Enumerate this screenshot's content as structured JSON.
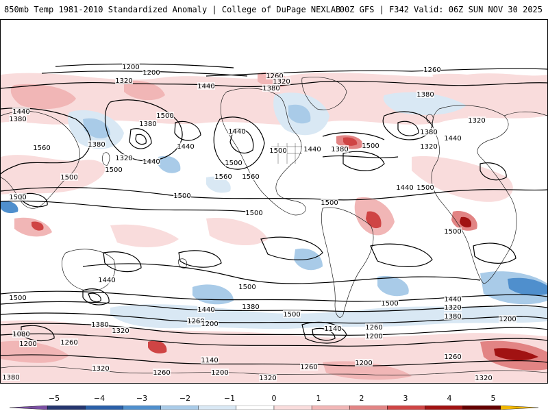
{
  "header": {
    "left": "850mb Temp 1981-2010 Standardized Anomaly | College of DuPage NEXLAB",
    "right": "00Z GFS | F342 Valid: 06Z SUN NOV 30 2025"
  },
  "colors": {
    "neg5": "#7a4fa3",
    "neg4": "#25356e",
    "neg3": "#2a5fa8",
    "neg2": "#4f8fcd",
    "neg1": "#a9cbe8",
    "neg05": "#d9e8f4",
    "zero": "#ffffff",
    "pos05": "#f9dcdc",
    "pos1": "#f1b6b6",
    "pos2": "#e28484",
    "pos3": "#cf4444",
    "pos4": "#a11212",
    "pos5": "#640000",
    "over": "#f2b700",
    "contour": "#000000",
    "coast": "#1f1f1f"
  },
  "colorbar": {
    "ticks": [
      "−5",
      "−4",
      "−3",
      "−2",
      "−1",
      "0",
      "1",
      "2",
      "3",
      "4",
      "5"
    ]
  },
  "contour_labels": [
    {
      "text": "1200"
    },
    {
      "text": "1200"
    },
    {
      "text": "1260"
    },
    {
      "text": "1260"
    },
    {
      "text": "1320"
    },
    {
      "text": "1320"
    },
    {
      "text": "1380"
    },
    {
      "text": "1440"
    },
    {
      "text": "1380"
    },
    {
      "text": "1440"
    },
    {
      "text": "1440"
    },
    {
      "text": "1380"
    },
    {
      "text": "1500"
    },
    {
      "text": "1380"
    },
    {
      "text": "1560"
    },
    {
      "text": "1560"
    },
    {
      "text": "1500"
    },
    {
      "text": "1320"
    },
    {
      "text": "1440"
    },
    {
      "text": "1500"
    },
    {
      "text": "1440"
    },
    {
      "text": "1500"
    },
    {
      "text": "1560"
    },
    {
      "text": "1500"
    },
    {
      "text": "1440"
    },
    {
      "text": "1380"
    },
    {
      "text": "1500"
    },
    {
      "text": "1380"
    },
    {
      "text": "1440"
    },
    {
      "text": "1320"
    },
    {
      "text": "1320"
    },
    {
      "text": "1380"
    },
    {
      "text": "1500"
    },
    {
      "text": "1500"
    },
    {
      "text": "1500"
    },
    {
      "text": "1500"
    },
    {
      "text": "1500"
    },
    {
      "text": "1440"
    },
    {
      "text": "1500"
    },
    {
      "text": "1500"
    },
    {
      "text": "1500"
    },
    {
      "text": "1440"
    },
    {
      "text": "1380"
    },
    {
      "text": "1500"
    },
    {
      "text": "1440"
    },
    {
      "text": "1320"
    },
    {
      "text": "1380"
    },
    {
      "text": "1260"
    },
    {
      "text": "1200"
    },
    {
      "text": "1140"
    },
    {
      "text": "1260"
    },
    {
      "text": "1200"
    },
    {
      "text": "1500"
    },
    {
      "text": "1440"
    },
    {
      "text": "1380"
    },
    {
      "text": "1320"
    },
    {
      "text": "1200"
    },
    {
      "text": "1080"
    },
    {
      "text": "1200"
    },
    {
      "text": "1260"
    },
    {
      "text": "1320"
    },
    {
      "text": "1380"
    },
    {
      "text": "1260"
    },
    {
      "text": "1140"
    },
    {
      "text": "1200"
    },
    {
      "text": "1260"
    },
    {
      "text": "1320"
    },
    {
      "text": "1200"
    },
    {
      "text": "1260"
    },
    {
      "text": "1320"
    }
  ]
}
